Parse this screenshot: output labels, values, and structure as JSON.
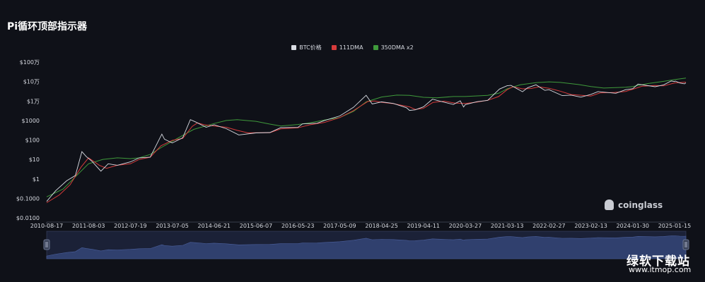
{
  "header": {
    "title": "Pi循环顶部指示器"
  },
  "chart_data": {
    "type": "line",
    "title": "Pi循环顶部指示器",
    "y_scale": "log",
    "y_ticks": [
      {
        "value": 0.01,
        "label": "$0.0100"
      },
      {
        "value": 0.1,
        "label": "$0.1000"
      },
      {
        "value": 1,
        "label": "$1"
      },
      {
        "value": 10,
        "label": "$10"
      },
      {
        "value": 100,
        "label": "$100"
      },
      {
        "value": 1000,
        "label": "$1000"
      },
      {
        "value": 10000,
        "label": "$1万"
      },
      {
        "value": 100000,
        "label": "$10万"
      },
      {
        "value": 1000000,
        "label": "$100万"
      }
    ],
    "x_ticks": [
      "2010-08-17",
      "2011-08-03",
      "2012-07-19",
      "2013-07-05",
      "2014-06-21",
      "2015-06-07",
      "2016-05-23",
      "2017-05-09",
      "2018-04-25",
      "2019-04-11",
      "2020-03-27",
      "2021-03-13",
      "2022-02-27",
      "2023-02-13",
      "2024-01-30",
      "2025-01-15"
    ],
    "xlim": [
      "2010-08-17",
      "2025-04-20"
    ],
    "ylim": [
      0.01,
      1000000
    ],
    "grid": false,
    "legend_position": "top",
    "series": [
      {
        "name": "BTC价格",
        "color": "#d9dce3",
        "points": [
          [
            "2010-08-17",
            0.07
          ],
          [
            "2010-11-01",
            0.25
          ],
          [
            "2011-02-01",
            0.8
          ],
          [
            "2011-04-15",
            1.5
          ],
          [
            "2011-06-08",
            25
          ],
          [
            "2011-07-15",
            14
          ],
          [
            "2011-09-01",
            8
          ],
          [
            "2011-11-15",
            2.5
          ],
          [
            "2012-01-15",
            6
          ],
          [
            "2012-04-01",
            5
          ],
          [
            "2012-07-19",
            7.5
          ],
          [
            "2012-10-01",
            12
          ],
          [
            "2013-01-01",
            13
          ],
          [
            "2013-04-09",
            200
          ],
          [
            "2013-05-01",
            110
          ],
          [
            "2013-07-05",
            70
          ],
          [
            "2013-10-01",
            130
          ],
          [
            "2013-12-04",
            1100
          ],
          [
            "2014-01-15",
            850
          ],
          [
            "2014-04-15",
            450
          ],
          [
            "2014-06-21",
            600
          ],
          [
            "2014-10-01",
            380
          ],
          [
            "2015-01-14",
            180
          ],
          [
            "2015-06-07",
            230
          ],
          [
            "2015-10-01",
            240
          ],
          [
            "2016-01-01",
            430
          ],
          [
            "2016-05-23",
            440
          ],
          [
            "2016-07-01",
            670
          ],
          [
            "2016-11-01",
            720
          ],
          [
            "2017-01-01",
            1000
          ],
          [
            "2017-05-09",
            1700
          ],
          [
            "2017-09-01",
            4700
          ],
          [
            "2017-12-17",
            19500
          ],
          [
            "2018-02-06",
            7000
          ],
          [
            "2018-04-25",
            9000
          ],
          [
            "2018-08-01",
            7500
          ],
          [
            "2018-11-20",
            4500
          ],
          [
            "2018-12-15",
            3300
          ],
          [
            "2019-02-01",
            3500
          ],
          [
            "2019-04-11",
            5000
          ],
          [
            "2019-06-26",
            12500
          ],
          [
            "2019-09-01",
            9600
          ],
          [
            "2019-12-18",
            6600
          ],
          [
            "2020-02-14",
            10200
          ],
          [
            "2020-03-13",
            4900
          ],
          [
            "2020-03-27",
            6500
          ],
          [
            "2020-07-01",
            9200
          ],
          [
            "2020-10-01",
            10800
          ],
          [
            "2021-01-08",
            41000
          ],
          [
            "2021-03-13",
            61000
          ],
          [
            "2021-04-14",
            63500
          ],
          [
            "2021-07-20",
            29800
          ],
          [
            "2021-09-01",
            48000
          ],
          [
            "2021-11-10",
            68000
          ],
          [
            "2022-01-24",
            35000
          ],
          [
            "2022-02-27",
            38000
          ],
          [
            "2022-06-18",
            18900
          ],
          [
            "2022-09-01",
            20000
          ],
          [
            "2022-11-21",
            15800
          ],
          [
            "2023-02-13",
            21800
          ],
          [
            "2023-04-14",
            30400
          ],
          [
            "2023-09-11",
            25000
          ],
          [
            "2023-12-01",
            38000
          ],
          [
            "2024-01-30",
            43000
          ],
          [
            "2024-03-14",
            73000
          ],
          [
            "2024-08-05",
            54000
          ],
          [
            "2024-10-15",
            67000
          ],
          [
            "2024-12-17",
            106000
          ],
          [
            "2025-01-15",
            100000
          ],
          [
            "2025-01-21",
            105000
          ],
          [
            "2025-02-28",
            84000
          ],
          [
            "2025-04-08",
            76000
          ],
          [
            "2025-04-20",
            85000
          ]
        ]
      },
      {
        "name": "111DMA",
        "color": "#d63b3b",
        "points": [
          [
            "2010-08-17",
            0.06
          ],
          [
            "2010-12-01",
            0.15
          ],
          [
            "2011-03-01",
            0.5
          ],
          [
            "2011-06-01",
            4
          ],
          [
            "2011-08-03",
            12
          ],
          [
            "2011-11-01",
            5
          ],
          [
            "2012-01-01",
            3.5
          ],
          [
            "2012-04-01",
            5
          ],
          [
            "2012-07-19",
            6
          ],
          [
            "2012-10-01",
            10
          ],
          [
            "2013-01-01",
            13
          ],
          [
            "2013-04-01",
            50
          ],
          [
            "2013-07-05",
            95
          ],
          [
            "2013-10-01",
            120
          ],
          [
            "2013-12-20",
            500
          ],
          [
            "2014-02-01",
            750
          ],
          [
            "2014-04-01",
            600
          ],
          [
            "2014-06-21",
            520
          ],
          [
            "2014-10-01",
            450
          ],
          [
            "2015-01-01",
            310
          ],
          [
            "2015-04-01",
            230
          ],
          [
            "2015-06-07",
            235
          ],
          [
            "2015-10-01",
            235
          ],
          [
            "2016-01-01",
            370
          ],
          [
            "2016-05-23",
            420
          ],
          [
            "2016-09-01",
            600
          ],
          [
            "2017-01-01",
            800
          ],
          [
            "2017-05-09",
            1400
          ],
          [
            "2017-09-01",
            3200
          ],
          [
            "2017-12-31",
            9500
          ],
          [
            "2018-03-01",
            10000
          ],
          [
            "2018-04-25",
            8600
          ],
          [
            "2018-08-01",
            7300
          ],
          [
            "2018-12-15",
            5000
          ],
          [
            "2019-02-01",
            3700
          ],
          [
            "2019-04-11",
            4200
          ],
          [
            "2019-07-01",
            8500
          ],
          [
            "2019-10-01",
            9800
          ],
          [
            "2020-01-01",
            7800
          ],
          [
            "2020-03-27",
            7500
          ],
          [
            "2020-07-01",
            8700
          ],
          [
            "2020-10-01",
            10800
          ],
          [
            "2021-01-01",
            17000
          ],
          [
            "2021-03-13",
            38000
          ],
          [
            "2021-05-01",
            54000
          ],
          [
            "2021-07-20",
            42000
          ],
          [
            "2021-10-01",
            44000
          ],
          [
            "2021-12-01",
            53000
          ],
          [
            "2022-02-27",
            45000
          ],
          [
            "2022-06-01",
            32000
          ],
          [
            "2022-09-01",
            21500
          ],
          [
            "2022-12-01",
            19500
          ],
          [
            "2023-02-13",
            18000
          ],
          [
            "2023-05-01",
            26000
          ],
          [
            "2023-09-01",
            27500
          ],
          [
            "2023-12-01",
            31000
          ],
          [
            "2024-01-30",
            40000
          ],
          [
            "2024-04-15",
            57000
          ],
          [
            "2024-08-01",
            63000
          ],
          [
            "2024-10-15",
            60000
          ],
          [
            "2025-01-15",
            85000
          ],
          [
            "2025-04-20",
            93000
          ]
        ]
      },
      {
        "name": "350DMA x2",
        "color": "#3f9a3b",
        "points": [
          [
            "2010-08-17",
            0.12
          ],
          [
            "2011-01-01",
            0.3
          ],
          [
            "2011-06-01",
            2.5
          ],
          [
            "2011-08-03",
            6
          ],
          [
            "2011-12-01",
            10
          ],
          [
            "2012-04-01",
            12
          ],
          [
            "2012-07-19",
            11
          ],
          [
            "2012-10-01",
            12
          ],
          [
            "2013-01-01",
            18
          ],
          [
            "2013-04-01",
            40
          ],
          [
            "2013-07-05",
            85
          ],
          [
            "2013-10-01",
            170
          ],
          [
            "2014-01-01",
            350
          ],
          [
            "2014-06-21",
            700
          ],
          [
            "2014-10-01",
            1000
          ],
          [
            "2015-01-01",
            1100
          ],
          [
            "2015-06-07",
            900
          ],
          [
            "2015-10-01",
            650
          ],
          [
            "2016-01-01",
            520
          ],
          [
            "2016-05-23",
            620
          ],
          [
            "2016-09-01",
            750
          ],
          [
            "2017-01-01",
            1050
          ],
          [
            "2017-05-09",
            1400
          ],
          [
            "2017-09-01",
            2900
          ],
          [
            "2017-12-17",
            9000
          ],
          [
            "2018-04-25",
            16000
          ],
          [
            "2018-09-01",
            20000
          ],
          [
            "2018-12-15",
            19500
          ],
          [
            "2019-04-11",
            15500
          ],
          [
            "2019-08-01",
            14500
          ],
          [
            "2019-12-18",
            17000
          ],
          [
            "2020-03-27",
            17000
          ],
          [
            "2020-10-01",
            19500
          ],
          [
            "2021-01-01",
            25000
          ],
          [
            "2021-03-13",
            42000
          ],
          [
            "2021-07-01",
            68000
          ],
          [
            "2021-11-10",
            88000
          ],
          [
            "2022-02-27",
            96000
          ],
          [
            "2022-06-01",
            90000
          ],
          [
            "2022-11-01",
            70000
          ],
          [
            "2023-02-13",
            55000
          ],
          [
            "2023-06-01",
            46000
          ],
          [
            "2023-12-01",
            51000
          ],
          [
            "2024-01-30",
            55000
          ],
          [
            "2024-06-01",
            78000
          ],
          [
            "2024-10-15",
            102000
          ],
          [
            "2025-01-15",
            125000
          ],
          [
            "2025-04-20",
            150000
          ]
        ]
      }
    ]
  },
  "navigator": {
    "left_handle": "grip-icon",
    "right_handle": "grip-icon"
  },
  "watermark": {
    "brand": "coinglass"
  },
  "site_logo": {
    "text": "绿软下载站",
    "url": "www.itmop.com"
  }
}
